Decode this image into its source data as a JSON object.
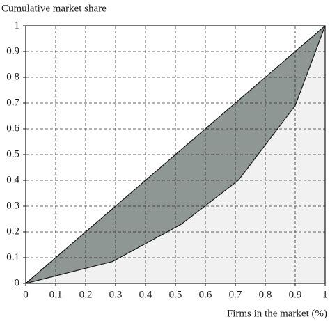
{
  "chart_data": {
    "type": "line",
    "ylabel": "Cumulative market share",
    "xlabel": "Firms in the market (%)",
    "series": [
      {
        "color": "#1a1a1a",
        "x": [
          0,
          1
        ],
        "values": [
          0,
          1
        ]
      },
      {
        "color": "#1a1a1a",
        "x": [
          0,
          0.29,
          0.52,
          0.71,
          0.9,
          1
        ],
        "values": [
          0,
          0.085,
          0.23,
          0.4,
          0.69,
          1
        ]
      }
    ],
    "band_color": "#8f9794",
    "under_color": "#f1f1f1",
    "xlim": [
      0,
      1
    ],
    "ylim": [
      0,
      1
    ],
    "xticks": [
      0,
      0.1,
      0.2,
      0.3,
      0.4,
      0.5,
      0.6,
      0.7,
      0.8,
      0.9,
      1
    ],
    "yticks": [
      0,
      0.1,
      0.2,
      0.3,
      0.4,
      0.5,
      0.6,
      0.7,
      0.8,
      0.9,
      1
    ],
    "grid": true
  }
}
